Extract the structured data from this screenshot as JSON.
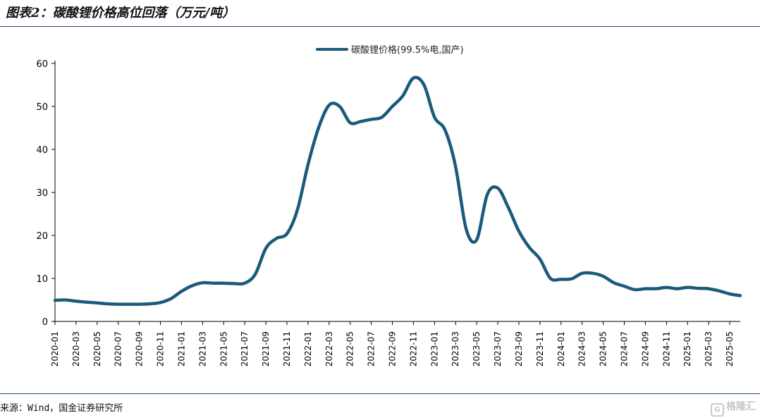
{
  "figure": {
    "title": "图表2：碳酸锂价格高位回落（万元/吨）",
    "source": "来源：Wind，国金证券研究所",
    "watermark": "格隆汇"
  },
  "chart_data": {
    "type": "line",
    "title": "",
    "xlabel": "",
    "ylabel": "",
    "ylim": [
      0,
      60
    ],
    "yticks": [
      0,
      10,
      20,
      30,
      40,
      50,
      60
    ],
    "grid": false,
    "legend_position": "top-center",
    "xticks": [
      "2020-01",
      "2020-03",
      "2020-05",
      "2020-07",
      "2020-09",
      "2020-11",
      "2021-01",
      "2021-03",
      "2021-05",
      "2021-07",
      "2021-09",
      "2021-11",
      "2022-01",
      "2022-03",
      "2022-05",
      "2022-07",
      "2022-09",
      "2022-11",
      "2023-01",
      "2023-03",
      "2023-05",
      "2023-07",
      "2023-09",
      "2023-11",
      "2024-01",
      "2024-03",
      "2024-05",
      "2024-07",
      "2024-09",
      "2024-11",
      "2025-01",
      "2025-03",
      "2025-05"
    ],
    "series": [
      {
        "name": "碳酸锂价格(99.5%电,国产)",
        "color": "#1b5a7c",
        "x": [
          "2020-01",
          "2020-02",
          "2020-03",
          "2020-04",
          "2020-05",
          "2020-06",
          "2020-07",
          "2020-08",
          "2020-09",
          "2020-10",
          "2020-11",
          "2020-12",
          "2021-01",
          "2021-02",
          "2021-03",
          "2021-04",
          "2021-05",
          "2021-06",
          "2021-07",
          "2021-08",
          "2021-09",
          "2021-10",
          "2021-11",
          "2021-12",
          "2022-01",
          "2022-02",
          "2022-03",
          "2022-04",
          "2022-05",
          "2022-06",
          "2022-07",
          "2022-08",
          "2022-09",
          "2022-10",
          "2022-11",
          "2022-12",
          "2023-01",
          "2023-02",
          "2023-03",
          "2023-04",
          "2023-05",
          "2023-06",
          "2023-07",
          "2023-08",
          "2023-09",
          "2023-10",
          "2023-11",
          "2023-12",
          "2024-01",
          "2024-02",
          "2024-03",
          "2024-04",
          "2024-05",
          "2024-06",
          "2024-07",
          "2024-08",
          "2024-09",
          "2024-10",
          "2024-11",
          "2024-12",
          "2025-01",
          "2025-02",
          "2025-03",
          "2025-04",
          "2025-05",
          "2025-06"
        ],
        "values": [
          4.9,
          5.0,
          4.7,
          4.5,
          4.3,
          4.1,
          4.0,
          4.0,
          4.0,
          4.1,
          4.4,
          5.3,
          7.0,
          8.3,
          9.0,
          8.9,
          8.9,
          8.8,
          8.9,
          11.0,
          17.0,
          19.3,
          20.4,
          26.0,
          36.5,
          45.0,
          50.3,
          50.0,
          46.2,
          46.5,
          47.0,
          47.5,
          50.0,
          52.5,
          56.6,
          55.0,
          47.5,
          44.5,
          36.0,
          21.5,
          19.0,
          29.5,
          31.0,
          26.5,
          21.0,
          17.2,
          14.5,
          10.0,
          9.8,
          9.9,
          11.2,
          11.2,
          10.5,
          9.0,
          8.2,
          7.4,
          7.6,
          7.6,
          7.9,
          7.6,
          7.9,
          7.7,
          7.6,
          7.1,
          6.4,
          6.0
        ]
      }
    ]
  }
}
